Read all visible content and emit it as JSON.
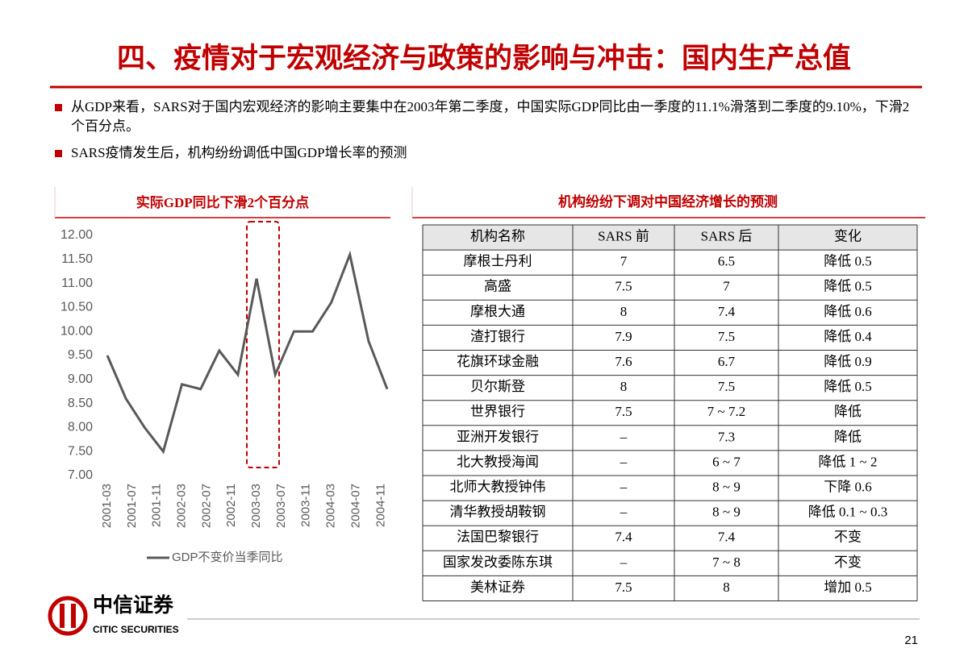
{
  "header": {
    "title": "四、疫情对于宏观经济与政策的影响与冲击：国内生产总值"
  },
  "bullets": [
    "从GDP来看，SARS对于国内宏观经济的影响主要集中在2003年第二季度，中国实际GDP同比由一季度的11.1%滑落到二季度的9.10%，下滑2个百分点。",
    "SARS疫情发生后，机构纷纷调低中国GDP增长率的预测"
  ],
  "chart_data": {
    "type": "line",
    "title": "实际GDP同比下滑2个百分点",
    "x": [
      "2001-03",
      "2001-06",
      "2001-09",
      "2001-12",
      "2002-03",
      "2002-06",
      "2002-09",
      "2002-12",
      "2003-03",
      "2003-06",
      "2003-09",
      "2003-12",
      "2004-03",
      "2004-06",
      "2004-09",
      "2004-12"
    ],
    "xticks": [
      "2001-03",
      "2001-07",
      "2001-11",
      "2002-03",
      "2002-07",
      "2002-11",
      "2003-03",
      "2003-07",
      "2003-11",
      "2004-03",
      "2004-07",
      "2004-11"
    ],
    "series": [
      {
        "name": "GDP不变价当季同比",
        "color": "#595959",
        "values": [
          9.5,
          8.6,
          8.0,
          7.5,
          8.9,
          8.8,
          9.6,
          9.1,
          11.1,
          9.1,
          10.0,
          10.0,
          10.6,
          11.6,
          9.8,
          8.8
        ]
      }
    ],
    "ylim": [
      7,
      12
    ],
    "yticks": [
      {
        "value": 7,
        "label": "7.00"
      },
      {
        "value": 7.5,
        "label": "7.50"
      },
      {
        "value": 8,
        "label": "8.00"
      },
      {
        "value": 8.5,
        "label": "8.50"
      },
      {
        "value": 9,
        "label": "9.00"
      },
      {
        "value": 9.5,
        "label": "9.50"
      },
      {
        "value": 10,
        "label": "10.00"
      },
      {
        "value": 10.5,
        "label": "10.50"
      },
      {
        "value": 11,
        "label": "11.00"
      },
      {
        "value": 11.5,
        "label": "11.50"
      },
      {
        "value": 12,
        "label": "12.00"
      }
    ],
    "grid": false,
    "legend": "bottom"
  },
  "table": {
    "title": "机构纷纷下调对中国经济增长的预测",
    "header": [
      "机构名称",
      "SARS 前",
      "SARS 后",
      "变化"
    ],
    "rows": [
      [
        "摩根士丹利",
        "7",
        "6.5",
        "降低 0.5"
      ],
      [
        "高盛",
        "7.5",
        "7",
        "降低 0.5"
      ],
      [
        "摩根大通",
        "8",
        "7.4",
        "降低 0.6"
      ],
      [
        "渣打银行",
        "7.9",
        "7.5",
        "降低 0.4"
      ],
      [
        "花旗环球金融",
        "7.6",
        "6.7",
        "降低 0.9"
      ],
      [
        "贝尔斯登",
        "8",
        "7.5",
        "降低 0.5"
      ],
      [
        "世界银行",
        "7.5",
        "7 ~ 7.2",
        "降低"
      ],
      [
        "亚洲开发银行",
        "–",
        "7.3",
        "降低"
      ],
      [
        "北大教授海闻",
        "–",
        "6 ~ 7",
        "降低 1 ~ 2"
      ],
      [
        "北师大教授钟伟",
        "–",
        "8 ~ 9",
        "下降 0.6"
      ],
      [
        "清华教授胡鞍钢",
        "–",
        "8 ~ 9",
        "降低 0.1 ~ 0.3"
      ],
      [
        "法国巴黎银行",
        "7.4",
        "7.4",
        "不变"
      ],
      [
        "国家发改委陈东琪",
        "–",
        "7 ~ 8",
        "不变"
      ],
      [
        "美林证券",
        "7.5",
        "8",
        "增加 0.5"
      ]
    ]
  },
  "footer": {
    "logo_name": "中信证券",
    "logo_en": "CITIC SECURITIES",
    "page_number": "21"
  }
}
